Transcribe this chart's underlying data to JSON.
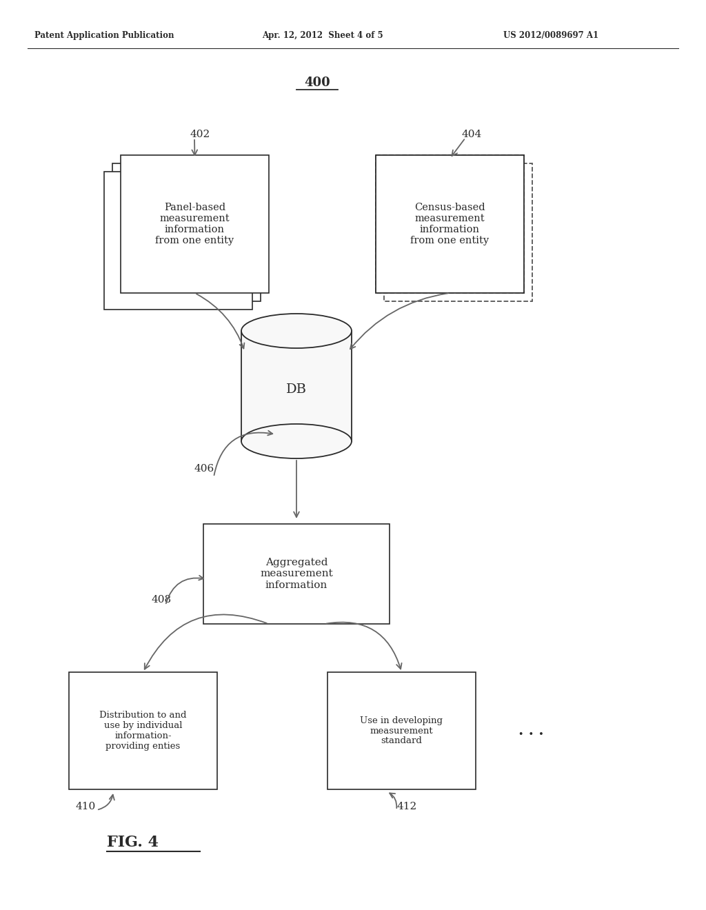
{
  "header_left": "Patent Application Publication",
  "header_mid": "Apr. 12, 2012  Sheet 4 of 5",
  "header_right": "US 2012/0089697 A1",
  "fig_number": "400",
  "fig_caption": "FIG. 4",
  "label402": "402",
  "text402": "Panel-based\nmeasurement\ninformation\nfrom one entity",
  "label404": "404",
  "text404": "Census-based\nmeasurement\ninformation\nfrom one entity",
  "db_text": "DB",
  "label406": "406",
  "text_agg": "Aggregated\nmeasurement\ninformation",
  "label408": "408",
  "label410": "410",
  "text410": "Distribution to and\nuse by individual\ninformation-\nproviding enties",
  "label412": "412",
  "text412": "Use in developing\nmeasurement\nstandard",
  "dots": ". . .",
  "bg": "#ffffff",
  "dark": "#2a2a2a",
  "arrow_color": "#666666"
}
